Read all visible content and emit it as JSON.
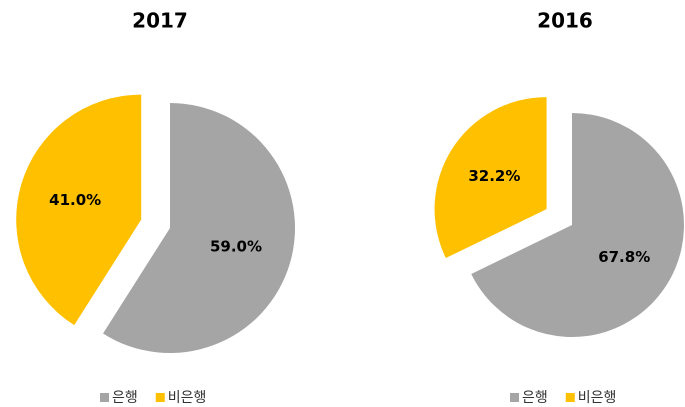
{
  "chart_data": [
    {
      "type": "pie",
      "title": "2017",
      "categories": [
        "은행",
        "비은행"
      ],
      "values": [
        59.0,
        41.0
      ],
      "value_labels": [
        "59.0%",
        "41.0%"
      ],
      "colors": [
        "#a5a5a5",
        "#ffc000"
      ],
      "legend": "bottom"
    },
    {
      "type": "pie",
      "title": "2016",
      "categories": [
        "은행",
        "비은행"
      ],
      "values": [
        67.8,
        32.2
      ],
      "value_labels": [
        "67.8%",
        "32.2%"
      ],
      "colors": [
        "#a5a5a5",
        "#ffc000"
      ],
      "legend": "bottom"
    }
  ]
}
